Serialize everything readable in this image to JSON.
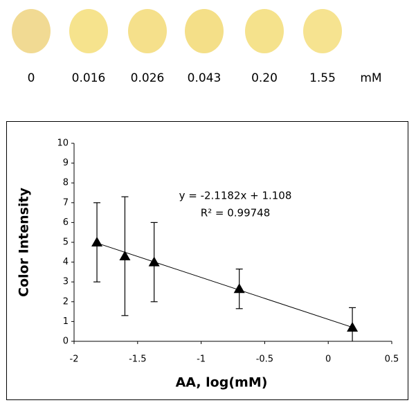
{
  "spots": {
    "labels": [
      "0",
      "0.016",
      "0.026",
      "0.043",
      "0.20",
      "1.55"
    ],
    "unit": "mM",
    "colors": [
      "#f1da93",
      "#f6e38d",
      "#f5e08b",
      "#f4df88",
      "#f5e28c",
      "#f6e390"
    ]
  },
  "chart_data": {
    "type": "scatter",
    "x": [
      -1.82,
      -1.6,
      -1.37,
      -0.7,
      0.19
    ],
    "values": [
      5.0,
      4.3,
      4.0,
      2.65,
      0.7
    ],
    "errors": [
      2.0,
      3.0,
      2.0,
      1.0,
      1.0
    ],
    "color": "#000000",
    "marker": "triangle",
    "trendline": {
      "slope": -2.1182,
      "intercept": 1.108,
      "label": "y = -2.1182x + 1.108",
      "r2_label": "R² = 0.99748"
    },
    "xlabel": "AA, log(mM)",
    "ylabel": "Color Intensity",
    "xlim": [
      -2,
      0.5
    ],
    "xticks": [
      -2,
      -1.5,
      -1,
      -0.5,
      0,
      0.5
    ],
    "ylim": [
      0,
      10
    ],
    "yticks": [
      0,
      1,
      2,
      3,
      4,
      5,
      6,
      7,
      8,
      9,
      10
    ],
    "grid": false
  }
}
